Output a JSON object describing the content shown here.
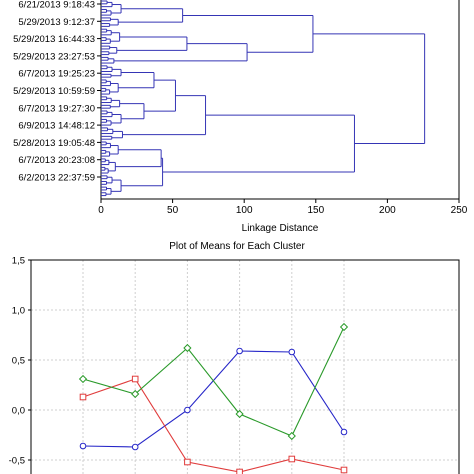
{
  "chart_data": [
    {
      "type": "dendrogram",
      "leaf_labels": [
        "6/21/2013 9:18:43",
        "5/29/2013 9:12:37",
        "5/29/2013 16:44:33",
        "5/29/2013 23:27:53",
        "6/7/2013 19:25:23",
        "5/29/2013 10:59:59",
        "6/7/2013 19:27:30",
        "6/9/2013 14:48:12",
        "5/28/2013 19:05:48",
        "6/7/2013 20:23:08",
        "6/2/2013 22:37:59"
      ],
      "xlabel": "Linkage Distance",
      "xticks": [
        0,
        50,
        100,
        150,
        200,
        250
      ],
      "xlim": [
        0,
        250
      ],
      "line_color": "#3535b5"
    },
    {
      "type": "line",
      "title": "Plot of Means for Each Cluster",
      "x": [
        1,
        2,
        3,
        4,
        5,
        6
      ],
      "yticks": [
        "1,5",
        "1,0",
        "0,5",
        "0,0",
        "-0,5"
      ],
      "ylim": [
        -0.6,
        1.5
      ],
      "grid": true,
      "series": [
        {
          "color": "#2626c8",
          "marker": "circle",
          "values": [
            -0.36,
            -0.37,
            0.0,
            0.59,
            0.58,
            -0.22
          ]
        },
        {
          "color": "#e03c3c",
          "marker": "square",
          "values": [
            0.13,
            0.31,
            -0.52,
            -0.62,
            -0.49,
            -0.6
          ]
        },
        {
          "color": "#2a9a2a",
          "marker": "diamond",
          "values": [
            0.31,
            0.16,
            0.62,
            -0.04,
            -0.26,
            0.83
          ]
        }
      ]
    }
  ]
}
